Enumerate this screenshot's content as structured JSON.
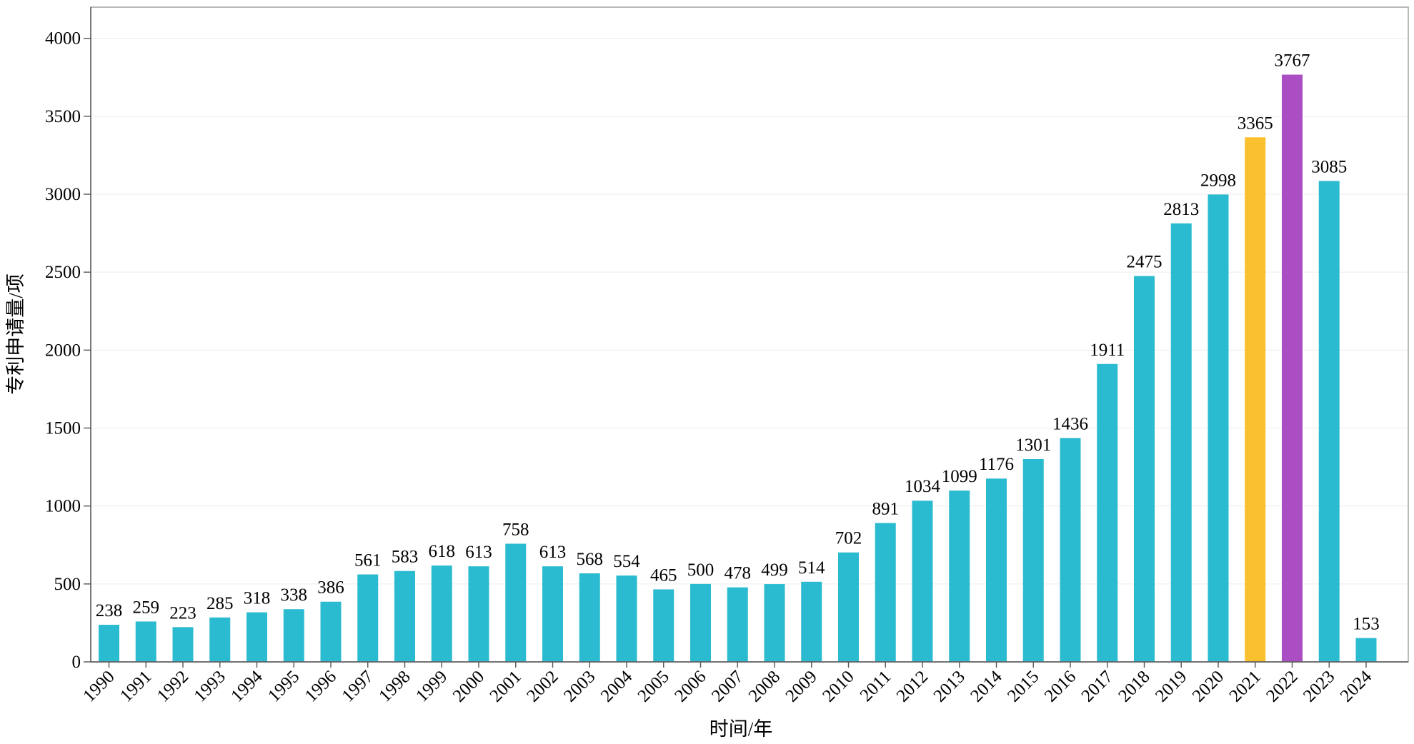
{
  "chart_data": {
    "type": "bar",
    "title": "",
    "xlabel": "时间/年",
    "ylabel": "专利申请量/项",
    "ylim": [
      0,
      4200
    ],
    "yticks": [
      0,
      500,
      1000,
      1500,
      2000,
      2500,
      3000,
      3500,
      4000
    ],
    "grid": true,
    "categories": [
      "1990",
      "1991",
      "1992",
      "1993",
      "1994",
      "1995",
      "1996",
      "1997",
      "1998",
      "1999",
      "2000",
      "2001",
      "2002",
      "2003",
      "2004",
      "2005",
      "2006",
      "2007",
      "2008",
      "2009",
      "2010",
      "2011",
      "2012",
      "2013",
      "2014",
      "2015",
      "2016",
      "2017",
      "2018",
      "2019",
      "2020",
      "2021",
      "2022",
      "2023",
      "2024"
    ],
    "values": [
      238,
      259,
      223,
      285,
      318,
      338,
      386,
      561,
      583,
      618,
      613,
      758,
      613,
      568,
      554,
      465,
      500,
      478,
      499,
      514,
      702,
      891,
      1034,
      1099,
      1176,
      1301,
      1436,
      1911,
      2475,
      2813,
      2998,
      3365,
      3767,
      3085,
      153
    ],
    "colors": {
      "default": "#2bbbd0",
      "highlight": {
        "2021": "#fbc02d",
        "2022": "#ab4ec4"
      }
    }
  }
}
